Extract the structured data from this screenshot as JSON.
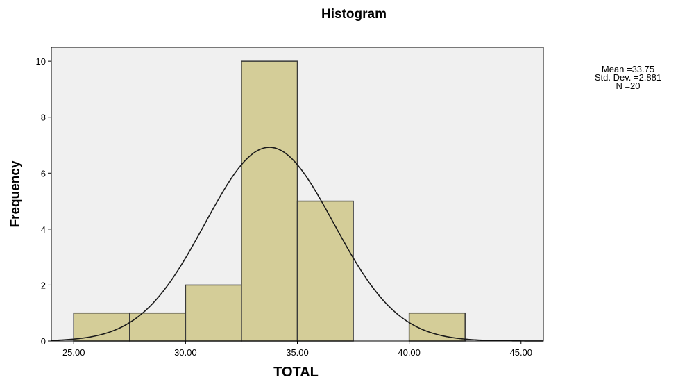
{
  "chart_data": {
    "type": "bar",
    "subtype": "histogram",
    "title": "Histogram",
    "xlabel": "TOTAL",
    "ylabel": "Frequency",
    "xlim": [
      24,
      46
    ],
    "ylim": [
      0,
      10.5
    ],
    "xticks": [
      25,
      30,
      35,
      40,
      45
    ],
    "xtick_labels": [
      "25.00",
      "30.00",
      "35.00",
      "40.00",
      "45.00"
    ],
    "yticks": [
      0,
      2,
      4,
      6,
      8,
      10
    ],
    "ytick_labels": [
      "0",
      "2",
      "4",
      "6",
      "8",
      "10"
    ],
    "bins": [
      {
        "start": 25.0,
        "end": 27.5,
        "count": 1
      },
      {
        "start": 27.5,
        "end": 30.0,
        "count": 1
      },
      {
        "start": 30.0,
        "end": 32.5,
        "count": 2
      },
      {
        "start": 32.5,
        "end": 35.0,
        "count": 10
      },
      {
        "start": 35.0,
        "end": 37.5,
        "count": 5
      },
      {
        "start": 37.5,
        "end": 40.0,
        "count": 0
      },
      {
        "start": 40.0,
        "end": 42.5,
        "count": 1
      }
    ],
    "bin_width": 2.5,
    "normal_curve": {
      "mean": 33.75,
      "sd": 2.881,
      "n": 20
    },
    "stats_lines": [
      "Mean =33.75",
      "Std. Dev. =2.881",
      "N =20"
    ],
    "grid": false,
    "colors": {
      "bar_fill": "#D4CD98",
      "bar_stroke": "#3A3A3A",
      "plot_background": "#F0F0F0",
      "curve": "#1A1A1A",
      "axis": "#000000"
    }
  }
}
